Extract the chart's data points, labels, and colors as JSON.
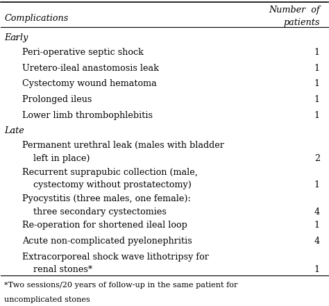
{
  "title_col1": "Complications",
  "title_col2_line1": "Number  of",
  "title_col2_line2": "patients",
  "background_color": "#ffffff",
  "rows": [
    {
      "text": "Early:",
      "indent": 0,
      "value": "",
      "is_section": true
    },
    {
      "text": "Peri-operative septic shock",
      "indent": 1,
      "value": "1",
      "is_section": false
    },
    {
      "text": "Uretero-ileal anastomosis leak",
      "indent": 1,
      "value": "1",
      "is_section": false
    },
    {
      "text": "Cystectomy wound hematoma",
      "indent": 1,
      "value": "1",
      "is_section": false
    },
    {
      "text": "Prolonged ileus",
      "indent": 1,
      "value": "1",
      "is_section": false
    },
    {
      "text": "Lower limb thrombophlebitis",
      "indent": 1,
      "value": "1",
      "is_section": false
    },
    {
      "text": "Late:",
      "indent": 0,
      "value": "",
      "is_section": true
    },
    {
      "text": "Permanent urethral leak (males with bladder",
      "text2": "left in place)",
      "indent": 1,
      "value": "2",
      "is_section": false,
      "multiline": true
    },
    {
      "text": "Recurrent suprapubic collection (male,",
      "text2": "cystectomy without prostatectomy)",
      "indent": 1,
      "value": "1",
      "is_section": false,
      "multiline": true
    },
    {
      "text": "Pyocystitis (three males, one female):",
      "text2": "three secondary cystectomies",
      "indent": 1,
      "value": "4",
      "is_section": false,
      "multiline": true
    },
    {
      "text": "Re-operation for shortened ileal loop",
      "indent": 1,
      "value": "1",
      "is_section": false,
      "multiline": false
    },
    {
      "text": "Acute non-complicated pyelonephritis",
      "indent": 1,
      "value": "4",
      "is_section": false,
      "multiline": false
    },
    {
      "text": "Extracorporeal shock wave lithotripsy for",
      "text2": "renal stones*",
      "indent": 1,
      "value": "1",
      "is_section": false,
      "multiline": true
    }
  ],
  "footnote_line1": "*Two sessions/20 years of follow-up in the same patient for",
  "footnote_line2": "uncomplicated stones",
  "font_size": 9.2,
  "header_font_size": 9.2
}
